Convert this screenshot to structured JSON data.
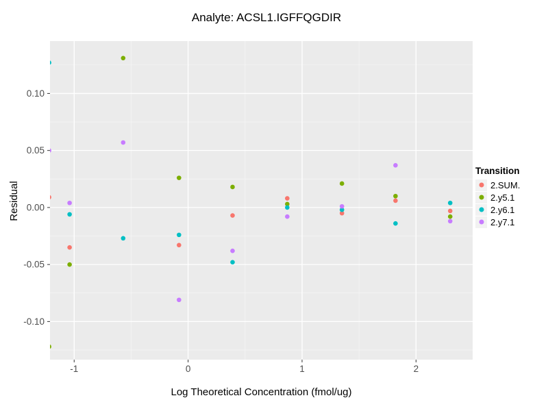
{
  "title": "Analyte: ACSL1.IGFFQGDIR",
  "chart_data": {
    "type": "scatter",
    "title": "Analyte: ACSL1.IGFFQGDIR",
    "xlabel": "Log Theoretical Concentration (fmol/ug)",
    "ylabel": "Residual",
    "xlim": [
      -1.212,
      2.497
    ],
    "ylim": [
      -0.1334,
      0.1459
    ],
    "x_ticks": [
      -1,
      0,
      1,
      2
    ],
    "y_ticks": [
      0.1,
      0.05,
      0.0,
      -0.05,
      -0.1
    ],
    "grid": "white major and minor gridlines on gray panel",
    "legend_position": "right",
    "legend_title": "Transition",
    "colors": {
      "panel_bg": "#EBEBEB",
      "grid_major": "#FFFFFF",
      "grid_minor": "#F6F6F6",
      "tick_label": "#4D4D4D",
      "tick_mark": "#333333"
    },
    "series": [
      {
        "name": "2.SUM.",
        "color": "#F8766D",
        "points": [
          [
            -1.22,
            0.009
          ],
          [
            -1.04,
            -0.035
          ],
          [
            -0.08,
            -0.033
          ],
          [
            0.39,
            -0.007
          ],
          [
            0.87,
            0.008
          ],
          [
            1.35,
            -0.005
          ],
          [
            1.82,
            0.006
          ],
          [
            2.3,
            -0.003
          ]
        ]
      },
      {
        "name": "2.y5.1",
        "color": "#7CAE00",
        "points": [
          [
            -1.22,
            -0.122
          ],
          [
            -1.04,
            -0.05
          ],
          [
            -0.57,
            0.131
          ],
          [
            -0.08,
            0.026
          ],
          [
            0.39,
            0.018
          ],
          [
            0.87,
            0.003
          ],
          [
            1.35,
            0.021
          ],
          [
            1.82,
            0.01
          ],
          [
            2.3,
            -0.008
          ]
        ]
      },
      {
        "name": "2.y6.1",
        "color": "#00BFC4",
        "points": [
          [
            -1.22,
            0.127
          ],
          [
            -1.04,
            -0.006
          ],
          [
            -0.57,
            -0.027
          ],
          [
            -0.08,
            -0.024
          ],
          [
            0.39,
            -0.048
          ],
          [
            0.87,
            0.0
          ],
          [
            1.35,
            -0.002
          ],
          [
            1.82,
            -0.014
          ],
          [
            2.3,
            0.004
          ]
        ]
      },
      {
        "name": "2.y7.1",
        "color": "#C77CFF",
        "points": [
          [
            -1.22,
            0.05
          ],
          [
            -1.04,
            0.004
          ],
          [
            -0.57,
            0.057
          ],
          [
            -0.08,
            -0.081
          ],
          [
            0.39,
            -0.038
          ],
          [
            0.87,
            -0.008
          ],
          [
            1.35,
            0.001
          ],
          [
            1.82,
            0.037
          ],
          [
            2.3,
            -0.012
          ]
        ]
      }
    ]
  }
}
